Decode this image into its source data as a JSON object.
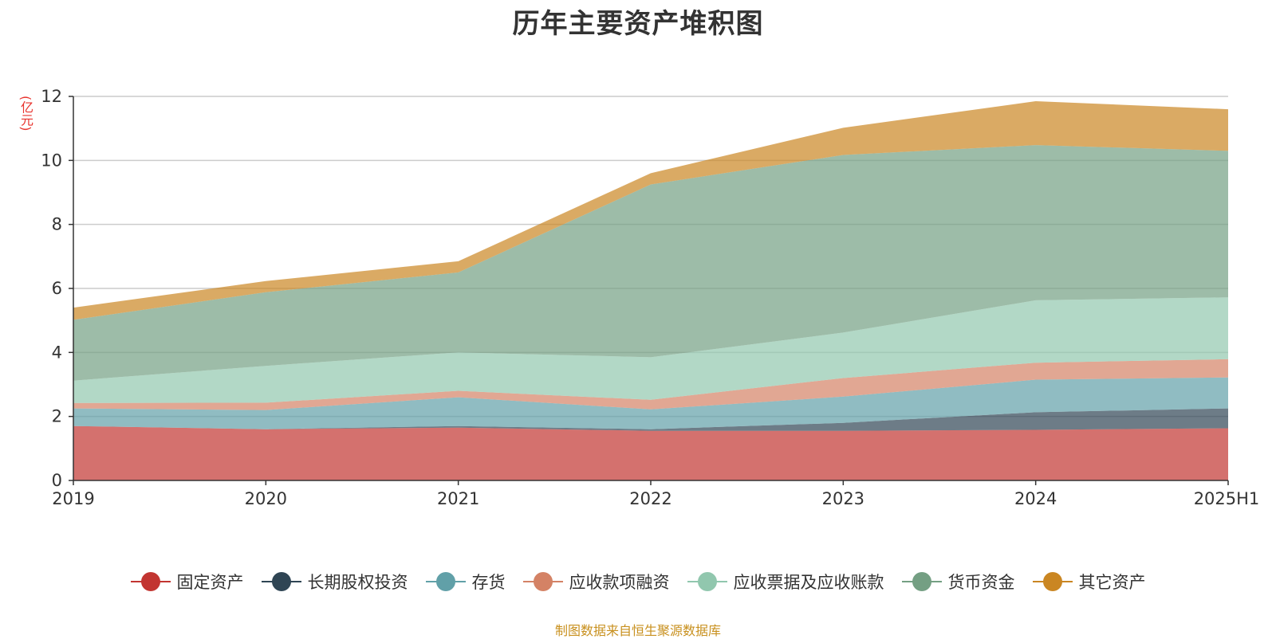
{
  "unit": "(亿元)",
  "source": "制图数据来自恒生聚源数据库",
  "chart_data": {
    "type": "area",
    "stacked": true,
    "title": "历年主要资产堆积图",
    "categories": [
      "2019",
      "2020",
      "2021",
      "2022",
      "2023",
      "2024",
      "2025H1"
    ],
    "ylim": [
      0,
      12
    ],
    "yticks": [
      "0",
      "2",
      "4",
      "6",
      "8",
      "10",
      "12"
    ],
    "grid": true,
    "legend_position": "bottom",
    "series": [
      {
        "name": "固定资产",
        "color": "#c23531",
        "values": [
          1.7,
          1.6,
          1.65,
          1.55,
          1.55,
          1.58,
          1.63
        ]
      },
      {
        "name": "长期股权投资",
        "color": "#2f4554",
        "values": [
          0.0,
          0.0,
          0.05,
          0.05,
          0.25,
          0.55,
          0.62
        ]
      },
      {
        "name": "存货",
        "color": "#61a0a8",
        "values": [
          0.55,
          0.6,
          0.9,
          0.62,
          0.82,
          1.02,
          0.97
        ]
      },
      {
        "name": "应收款项融资",
        "color": "#d48265",
        "values": [
          0.17,
          0.23,
          0.2,
          0.3,
          0.58,
          0.53,
          0.57
        ]
      },
      {
        "name": "应收票据及应收账款",
        "color": "#91c7ae",
        "values": [
          0.7,
          1.15,
          1.2,
          1.33,
          1.42,
          1.95,
          1.93
        ]
      },
      {
        "name": "货币资金",
        "color": "#749f83",
        "values": [
          1.9,
          2.3,
          2.5,
          5.4,
          5.55,
          4.85,
          4.58
        ]
      },
      {
        "name": "其它资产",
        "color": "#ca8622",
        "values": [
          0.38,
          0.35,
          0.35,
          0.35,
          0.85,
          1.37,
          1.3
        ]
      }
    ]
  }
}
